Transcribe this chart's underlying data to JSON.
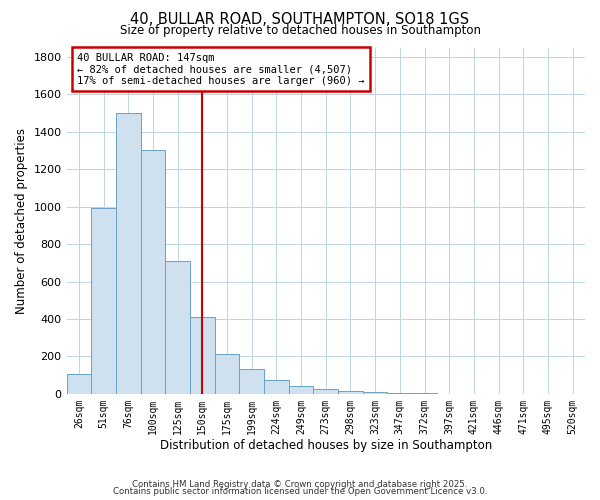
{
  "title": "40, BULLAR ROAD, SOUTHAMPTON, SO18 1GS",
  "subtitle": "Size of property relative to detached houses in Southampton",
  "xlabel": "Distribution of detached houses by size in Southampton",
  "ylabel": "Number of detached properties",
  "bar_color": "#cfe0ef",
  "bar_edge_color": "#6aa0c8",
  "categories": [
    "26sqm",
    "51sqm",
    "76sqm",
    "100sqm",
    "125sqm",
    "150sqm",
    "175sqm",
    "199sqm",
    "224sqm",
    "249sqm",
    "273sqm",
    "298sqm",
    "323sqm",
    "347sqm",
    "372sqm",
    "397sqm",
    "421sqm",
    "446sqm",
    "471sqm",
    "495sqm",
    "520sqm"
  ],
  "values": [
    105,
    995,
    1500,
    1300,
    710,
    410,
    215,
    135,
    75,
    40,
    25,
    15,
    10,
    5,
    5,
    0,
    0,
    0,
    0,
    0,
    0
  ],
  "ylim": [
    0,
    1850
  ],
  "yticks": [
    0,
    200,
    400,
    600,
    800,
    1000,
    1200,
    1400,
    1600,
    1800
  ],
  "vline_x": 5.0,
  "vline_color": "#cc0000",
  "annotation_title": "40 BULLAR ROAD: 147sqm",
  "annotation_line1": "← 82% of detached houses are smaller (4,507)",
  "annotation_line2": "17% of semi-detached houses are larger (960) →",
  "annotation_box_edge": "#cc0000",
  "footer1": "Contains HM Land Registry data © Crown copyright and database right 2025.",
  "footer2": "Contains public sector information licensed under the Open Government Licence v3.0.",
  "background_color": "#ffffff",
  "grid_color": "#c0d4e8"
}
